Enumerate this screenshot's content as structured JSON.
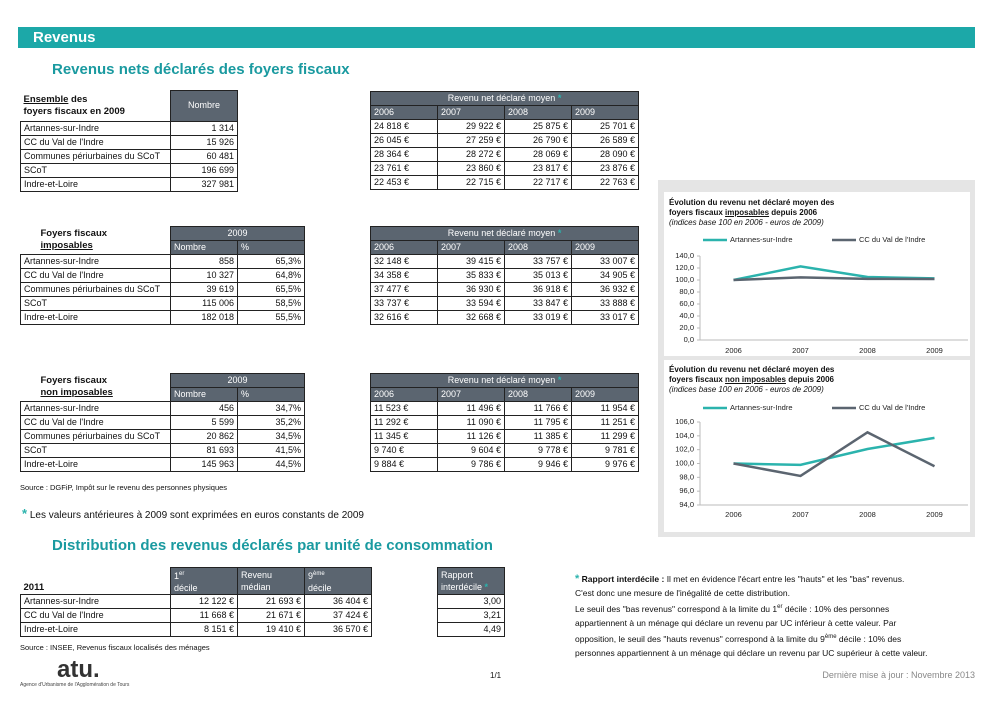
{
  "header": {
    "title": "Revenus",
    "subtitle": "Revenus nets déclarés des foyers fiscaux"
  },
  "asterisk": "*",
  "all_households": {
    "caption_em": "Ensemble",
    "caption_rest": "des",
    "caption_line2": "foyers fiscaux en 2009",
    "count_header": "Nombre",
    "rows": [
      [
        "Artannes-sur-Indre",
        "1 314"
      ],
      [
        "CC du Val de l'Indre",
        "15 926"
      ],
      [
        "Communes périurbaines du SCoT",
        "60 481"
      ],
      [
        "SCoT",
        "196 699"
      ],
      [
        "Indre-et-Loire",
        "327 981"
      ]
    ]
  },
  "taxable": {
    "caption_line1": "Foyers fiscaux",
    "caption_em": "imposables",
    "year": "2009",
    "columns": [
      "Nombre",
      "%"
    ],
    "rows": [
      [
        "Artannes-sur-Indre",
        "858",
        "65,3%"
      ],
      [
        "CC du Val de l'Indre",
        "10 327",
        "64,8%"
      ],
      [
        "Communes périurbaines du SCoT",
        "39 619",
        "65,5%"
      ],
      [
        "SCoT",
        "115 006",
        "58,5%"
      ],
      [
        "Indre-et-Loire",
        "182 018",
        "55,5%"
      ]
    ]
  },
  "non_taxable": {
    "caption_line1": "Foyers fiscaux",
    "caption_em": "non imposables",
    "year": "2009",
    "columns": [
      "Nombre",
      "%"
    ],
    "rows": [
      [
        "Artannes-sur-Indre",
        "456",
        "34,7%"
      ],
      [
        "CC du Val de l'Indre",
        "5 599",
        "35,2%"
      ],
      [
        "Communes périurbaines du SCoT",
        "20 862",
        "34,5%"
      ],
      [
        "SCoT",
        "81 693",
        "41,5%"
      ],
      [
        "Indre-et-Loire",
        "145 963",
        "44,5%"
      ]
    ]
  },
  "income_tables": [
    {
      "header": "Revenu net déclaré moyen",
      "years": [
        "2006",
        "2007",
        "2008",
        "2009"
      ],
      "rows": [
        [
          "24 818 €",
          "29 922 €",
          "25 875 €",
          "25 701 €"
        ],
        [
          "26 045 €",
          "27 259 €",
          "26 790 €",
          "26 589 €"
        ],
        [
          "28 364 €",
          "28 272 €",
          "28 069 €",
          "28 090 €"
        ],
        [
          "23 761 €",
          "23 860 €",
          "23 817 €",
          "23 876 €"
        ],
        [
          "22 453 €",
          "22 715 €",
          "22 717 €",
          "22 763 €"
        ]
      ]
    },
    {
      "header": "Revenu net déclaré moyen",
      "years": [
        "2006",
        "2007",
        "2008",
        "2009"
      ],
      "rows": [
        [
          "32 148 €",
          "39 415 €",
          "33 757 €",
          "33 007 €"
        ],
        [
          "34 358 €",
          "35 833 €",
          "35 013 €",
          "34 905 €"
        ],
        [
          "37 477 €",
          "36 930 €",
          "36 918 €",
          "36 932 €"
        ],
        [
          "33 737 €",
          "33 594 €",
          "33 847 €",
          "33 888 €"
        ],
        [
          "32 616 €",
          "32 668 €",
          "33 019 €",
          "33 017 €"
        ]
      ]
    },
    {
      "header": "Revenu net déclaré moyen",
      "years": [
        "2006",
        "2007",
        "2008",
        "2009"
      ],
      "rows": [
        [
          "11 523 €",
          "11 496 €",
          "11 766 €",
          "11 954 €"
        ],
        [
          "11 292 €",
          "11 090 €",
          "11 795 €",
          "11 251 €"
        ],
        [
          "11 345 €",
          "11 126 €",
          "11 385 €",
          "11 299 €"
        ],
        [
          "9 740 €",
          "9 604 €",
          "9 778 €",
          "9 781 €"
        ],
        [
          "9 884 €",
          "9 786 €",
          "9 946 €",
          "9 976 €"
        ]
      ]
    }
  ],
  "source1": "Source : DGFiP, Impôt sur le revenu des personnes physiques",
  "constant_note": "Les valeurs antérieures à 2009 sont exprimées en euros constants de 2009",
  "section2_title": "Distribution des revenus déclarés par unité de consommation",
  "distribution": {
    "caption": "2011",
    "columns": [
      [
        "1",
        "er",
        "décile"
      ],
      [
        "Revenu",
        "médian"
      ],
      [
        "9",
        "ème",
        "décile"
      ]
    ],
    "rows": [
      [
        "Artannes-sur-Indre",
        "12 122 €",
        "21 693 €",
        "36 404 €"
      ],
      [
        "CC du Val de l'Indre",
        "11 668 €",
        "21 671 €",
        "37 424 €"
      ],
      [
        "Indre-et-Loire",
        "8 151 €",
        "19 410 €",
        "36 570 €"
      ]
    ],
    "ratio_header": "Rapport interdécile",
    "ratios": [
      "3,00",
      "3,21",
      "4,49"
    ]
  },
  "source2": "Source : INSEE, Revenus fiscaux localisés des ménages",
  "note": {
    "bold": "Rapport interdécile :",
    "lines": [
      [
        "Il met en évidence l'écart entre les \"hauts\" et les \"bas\" revenus."
      ],
      [
        "C'est donc une mesure de l'inégalité de cette distribution."
      ],
      [
        "Le seuil des \"bas revenus\" correspond à la limite du 1",
        {
          "sup": "er"
        },
        " décile : 10% des personnes"
      ],
      [
        "appartiennent à un ménage qui déclare un revenu par UC inférieur à cette valeur. Par"
      ],
      [
        "opposition, le seuil des \"hauts revenus\" correspond à la limite du 9",
        {
          "sup": "ème"
        },
        " décile : 10% des"
      ],
      [
        "personnes appartiennent à un ménage qui déclare un revenu par UC supérieur à cette valeur."
      ]
    ]
  },
  "footer": {
    "logo": "atu.",
    "logo_caption": "Agence d'Urbanisme de l'Agglomération de Tours",
    "page": "1/1",
    "updated": "Dernière mise à jour : Novembre 2013"
  },
  "chart_data": [
    {
      "type": "line",
      "title_line1": "Évolution du revenu net déclaré moyen des",
      "title_pre": "foyers fiscaux",
      "title_em": "imposables",
      "title_post": "depuis 2006",
      "subtitle": "(indices base 100 en 2006 - euros de 2009)",
      "categories": [
        "2006",
        "2007",
        "2008",
        "2009"
      ],
      "series": [
        {
          "name": "Artannes-sur-Indre",
          "color": "#2bb3ad",
          "values": [
            100,
            122.6,
            105,
            102.7
          ]
        },
        {
          "name": "CC du Val de l'Indre",
          "color": "#5b6570",
          "values": [
            100,
            104.3,
            101.9,
            101.6
          ]
        }
      ],
      "ylim": [
        0,
        140
      ],
      "yticks": [
        {
          "value": 0,
          "label": "0,0"
        },
        {
          "value": 20,
          "label": "20,0"
        },
        {
          "value": 40,
          "label": "40,0"
        },
        {
          "value": 60,
          "label": "60,0"
        },
        {
          "value": 80,
          "label": "80,0"
        },
        {
          "value": 100,
          "label": "100,0"
        },
        {
          "value": 120,
          "label": "120,0"
        },
        {
          "value": 140,
          "label": "140,0"
        }
      ]
    },
    {
      "type": "line",
      "title_line1": "Évolution du revenu net déclaré moyen des",
      "title_pre": "foyers fiscaux",
      "title_em": "non imposables",
      "title_post": "depuis 2006",
      "subtitle": "(indices base 100 en 2006 - euros de 2009)",
      "categories": [
        "2006",
        "2007",
        "2008",
        "2009"
      ],
      "series": [
        {
          "name": "Artannes-sur-Indre",
          "color": "#2bb3ad",
          "values": [
            100,
            99.8,
            102.1,
            103.7
          ]
        },
        {
          "name": "CC du Val de l'Indre",
          "color": "#5b6570",
          "values": [
            100,
            98.2,
            104.5,
            99.6
          ]
        }
      ],
      "ylim": [
        94,
        106
      ],
      "yticks": [
        {
          "value": 94,
          "label": "94,0"
        },
        {
          "value": 96,
          "label": "96,0"
        },
        {
          "value": 98,
          "label": "98,0"
        },
        {
          "value": 100,
          "label": "100,0"
        },
        {
          "value": 102,
          "label": "102,0"
        },
        {
          "value": 104,
          "label": "104,0"
        },
        {
          "value": 106,
          "label": "106,0"
        }
      ]
    }
  ]
}
